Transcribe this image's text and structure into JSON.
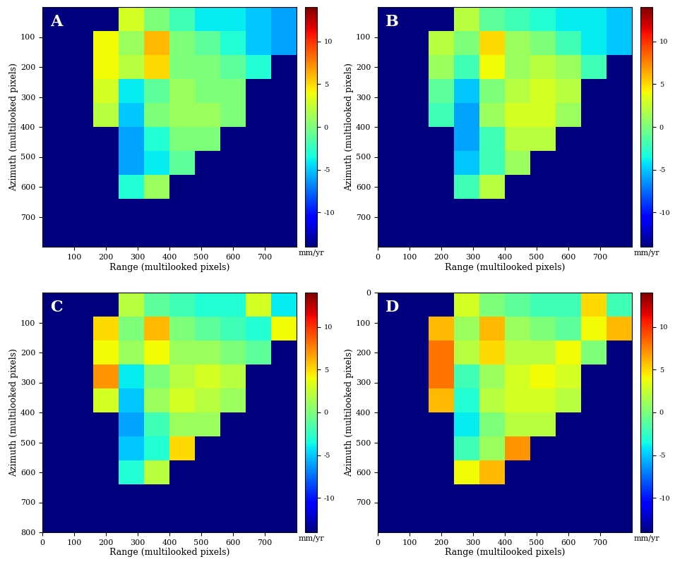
{
  "chart_data": [
    {
      "type": "heatmap",
      "annotation": "A",
      "x_label": "Range (multilooked pixels)",
      "y_label": "Azimuth (multilooked pixels)",
      "xlim": [
        0,
        800
      ],
      "ylim": [
        800,
        0
      ],
      "xticks": [
        100,
        200,
        300,
        400,
        500,
        600,
        700
      ],
      "yticks": [
        100,
        200,
        300,
        400,
        500,
        600,
        700
      ],
      "cells": [
        [
          null,
          null,
          null,
          3,
          0,
          -2,
          -4,
          -4,
          -5,
          -6
        ],
        [
          null,
          null,
          4,
          1,
          6,
          0,
          -1,
          -3,
          -5,
          -6
        ],
        [
          null,
          null,
          4,
          2,
          5,
          0,
          0,
          -1,
          -3,
          null
        ],
        [
          null,
          null,
          3,
          -4,
          -1,
          1,
          0,
          0,
          null,
          null
        ],
        [
          null,
          null,
          2,
          -5,
          0,
          1,
          1,
          0,
          null,
          null
        ],
        [
          null,
          null,
          null,
          -6,
          -3,
          0,
          0,
          null,
          null,
          null
        ],
        [
          null,
          null,
          null,
          -6,
          -4,
          -1,
          null,
          null,
          null,
          null
        ],
        [
          null,
          null,
          null,
          -3,
          1,
          null,
          null,
          null,
          null,
          null
        ],
        [
          null,
          null,
          null,
          null,
          null,
          null,
          null,
          null,
          null,
          null
        ],
        [
          null,
          null,
          null,
          null,
          null,
          null,
          null,
          null,
          null,
          null
        ]
      ],
      "colorbar": {
        "range": [
          -14,
          14
        ],
        "ticks": [
          -10,
          -5,
          0,
          5,
          10
        ],
        "label": "mm/yr"
      }
    },
    {
      "type": "heatmap",
      "annotation": "B",
      "x_label": "Range (multilooked pixels)",
      "y_label": "Azimuth (multilooked pixels)",
      "xlim": [
        0,
        800
      ],
      "ylim": [
        800,
        0
      ],
      "xticks": [
        0,
        100,
        200,
        300,
        400,
        500,
        600,
        700
      ],
      "yticks": [
        100,
        200,
        300,
        400,
        500,
        600,
        700
      ],
      "cells": [
        [
          null,
          null,
          null,
          2,
          -1,
          -2,
          -3,
          -4,
          -4,
          -5
        ],
        [
          null,
          null,
          2,
          0,
          5,
          1,
          0,
          -2,
          -4,
          -5
        ],
        [
          null,
          null,
          1,
          -2,
          4,
          1,
          2,
          1,
          -2,
          null
        ],
        [
          null,
          null,
          -1,
          -5,
          0,
          2,
          3,
          2,
          null,
          null
        ],
        [
          null,
          null,
          -2,
          -6,
          1,
          3,
          3,
          1,
          null,
          null
        ],
        [
          null,
          null,
          null,
          -6,
          -2,
          2,
          2,
          null,
          null,
          null
        ],
        [
          null,
          null,
          null,
          -5,
          -2,
          1,
          null,
          null,
          null,
          null
        ],
        [
          null,
          null,
          null,
          -2,
          2,
          null,
          null,
          null,
          null,
          null
        ],
        [
          null,
          null,
          null,
          null,
          null,
          null,
          null,
          null,
          null,
          null
        ],
        [
          null,
          null,
          null,
          null,
          null,
          null,
          null,
          null,
          null,
          null
        ]
      ],
      "colorbar": {
        "range": [
          -14,
          14
        ],
        "ticks": [
          -10,
          -5,
          0,
          5,
          10
        ],
        "label": "mm/yr"
      }
    },
    {
      "type": "heatmap",
      "annotation": "C",
      "x_label": "Range (multilooked pixels)",
      "y_label": "Azimuth (multilooked pixels)",
      "xlim": [
        0,
        800
      ],
      "ylim": [
        800,
        0
      ],
      "xticks": [
        0,
        100,
        200,
        300,
        400,
        500,
        600,
        700
      ],
      "yticks": [
        100,
        200,
        300,
        400,
        500,
        600,
        700,
        800
      ],
      "cells": [
        [
          null,
          null,
          null,
          2,
          -1,
          -2,
          -3,
          -3,
          3,
          -4
        ],
        [
          null,
          null,
          5,
          0,
          6,
          0,
          -1,
          -2,
          -3,
          4
        ],
        [
          null,
          null,
          4,
          1,
          4,
          1,
          1,
          0,
          -1,
          null
        ],
        [
          null,
          null,
          7,
          -4,
          0,
          2,
          3,
          2,
          null,
          null
        ],
        [
          null,
          null,
          3,
          -5,
          1,
          3,
          2,
          1,
          null,
          null
        ],
        [
          null,
          null,
          null,
          -6,
          -2,
          1,
          1,
          null,
          null,
          null
        ],
        [
          null,
          null,
          null,
          -5,
          -3,
          5,
          null,
          null,
          null,
          null
        ],
        [
          null,
          null,
          null,
          -3,
          2,
          null,
          null,
          null,
          null,
          null
        ],
        [
          null,
          null,
          null,
          null,
          null,
          null,
          null,
          null,
          null,
          null
        ],
        [
          null,
          null,
          null,
          null,
          null,
          null,
          null,
          null,
          null,
          null
        ]
      ],
      "colorbar": {
        "range": [
          -14,
          14
        ],
        "ticks": [
          -10,
          -5,
          0,
          5,
          10
        ],
        "label": "mm/yr"
      }
    },
    {
      "type": "heatmap",
      "annotation": "D",
      "x_label": "Range (multilooked pixels)",
      "y_label": "Azimuth (multilooked pixels)",
      "xlim": [
        0,
        800
      ],
      "ylim": [
        800,
        0
      ],
      "xticks": [
        0,
        100,
        200,
        300,
        400,
        500,
        600,
        700
      ],
      "yticks": [
        0,
        100,
        200,
        300,
        400,
        500,
        600,
        700
      ],
      "cells": [
        [
          null,
          null,
          null,
          3,
          0,
          -1,
          -2,
          -2,
          5,
          -2
        ],
        [
          null,
          null,
          6,
          1,
          6,
          1,
          0,
          -1,
          4,
          6
        ],
        [
          null,
          null,
          8,
          2,
          5,
          2,
          2,
          4,
          0,
          null
        ],
        [
          null,
          null,
          8,
          -2,
          1,
          3,
          4,
          3,
          null,
          null
        ],
        [
          null,
          null,
          6,
          -3,
          2,
          3,
          3,
          2,
          null,
          null
        ],
        [
          null,
          null,
          null,
          -4,
          0,
          2,
          2,
          null,
          null,
          null
        ],
        [
          null,
          null,
          null,
          -2,
          1,
          7,
          null,
          null,
          null,
          null
        ],
        [
          null,
          null,
          null,
          4,
          6,
          null,
          null,
          null,
          null,
          null
        ],
        [
          null,
          null,
          null,
          null,
          null,
          null,
          null,
          null,
          null,
          null
        ],
        [
          null,
          null,
          null,
          null,
          null,
          null,
          null,
          null,
          null,
          null
        ]
      ],
      "colorbar": {
        "range": [
          -14,
          14
        ],
        "ticks": [
          -10,
          -5,
          0,
          5,
          10
        ],
        "label": "mm/yr"
      }
    }
  ]
}
